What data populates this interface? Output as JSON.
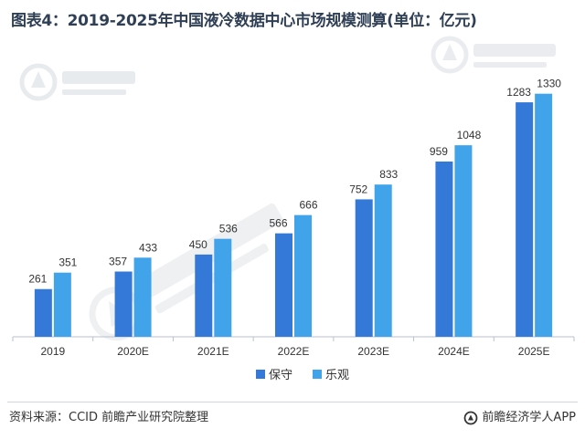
{
  "title": "图表4：2019-2025年中国液冷数据中心市场规模测算(单位：亿元)",
  "watermark": "前瞻产业研究院",
  "footer": {
    "source": "资料来源：CCID 前瞻产业研究院整理",
    "brand": "前瞻经济学人APP",
    "brand_icon": "qianzhan-logo-icon"
  },
  "colors": {
    "series_1": "#3478d8",
    "series_2": "#41a3ea",
    "axis": "#b8c2cc",
    "label": "#333333",
    "title": "#2f3f55"
  },
  "chart_data": {
    "type": "bar",
    "title": "图表4：2019-2025年中国液冷数据中心市场规模测算(单位：亿元)",
    "categories": [
      "2019",
      "2020E",
      "2021E",
      "2022E",
      "2023E",
      "2024E",
      "2025E"
    ],
    "series": [
      {
        "name": "保守",
        "values": [
          261,
          357,
          450,
          566,
          752,
          959,
          1283
        ]
      },
      {
        "name": "乐观",
        "values": [
          351,
          433,
          536,
          666,
          833,
          1048,
          1330
        ]
      }
    ],
    "xlabel": "",
    "ylabel": "",
    "ylim": [
      0,
      1400
    ],
    "grid": false,
    "legend": "bottom-center",
    "data_labels": true
  }
}
